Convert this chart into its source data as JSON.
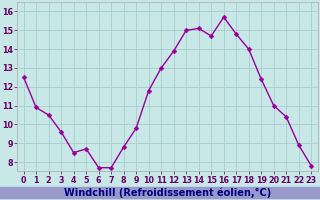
{
  "x": [
    0,
    1,
    2,
    3,
    4,
    5,
    6,
    7,
    8,
    9,
    10,
    11,
    12,
    13,
    14,
    15,
    16,
    17,
    18,
    19,
    20,
    21,
    22,
    23
  ],
  "y": [
    12.5,
    10.9,
    10.5,
    9.6,
    8.5,
    8.7,
    7.7,
    7.7,
    8.8,
    9.8,
    11.8,
    13.0,
    13.9,
    15.0,
    15.1,
    14.7,
    15.7,
    14.8,
    14.0,
    12.4,
    11.0,
    10.4,
    8.9,
    7.8
  ],
  "line_color": "#990099",
  "marker": "D",
  "marker_size": 2.5,
  "bg_color": "#c8e8e8",
  "grid_color": "#aacccc",
  "xlabel": "Windchill (Refroidissement éolien,°C)",
  "xlabel_color": "#000080",
  "xlabel_bg": "#9999cc",
  "ylim": [
    7.5,
    16.5
  ],
  "yticks": [
    8,
    9,
    10,
    11,
    12,
    13,
    14,
    15,
    16
  ],
  "xticks": [
    0,
    1,
    2,
    3,
    4,
    5,
    6,
    7,
    8,
    9,
    10,
    11,
    12,
    13,
    14,
    15,
    16,
    17,
    18,
    19,
    20,
    21,
    22,
    23
  ],
  "tick_label_color": "#660066",
  "tick_label_fontsize": 5.8,
  "xlabel_fontsize": 7.0,
  "spine_color": "#aaaaaa"
}
